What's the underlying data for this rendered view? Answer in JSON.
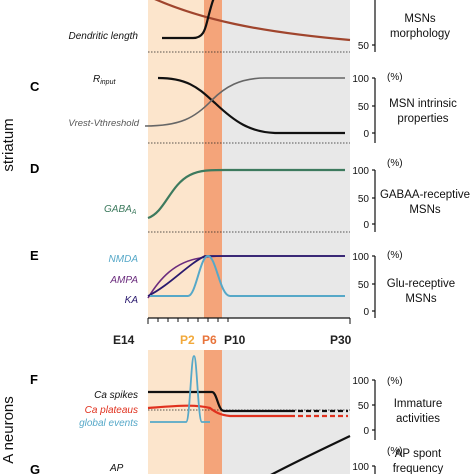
{
  "figure": {
    "side_labels": {
      "striatum": "striatum",
      "bottom": "A neurons"
    },
    "axis": {
      "ticks": [
        "E14",
        "P2",
        "P6",
        "P10",
        "P30"
      ],
      "tick_colors": {
        "P2": "#f2a93b",
        "P6": "#e8743b",
        "P10": "#222222",
        "E14": "#222222",
        "P30": "#222222"
      }
    },
    "colors": {
      "peach": "#fce5cc",
      "orange_band": "#f4a47a",
      "gray": "#e8e8e8",
      "black": "#111111",
      "brown": "#a0452d",
      "dark_gray": "#666666",
      "green": "#3d7a5e",
      "cyan": "#56a8c8",
      "purple": "#6b2c7e",
      "navy": "#2a1a6e",
      "red": "#e0311e"
    },
    "panels": {
      "top": {
        "dendritic_label": "Dendritic length",
        "right_label_1": "MSNs",
        "right_label_2": "morphology",
        "y_label": "50"
      },
      "C": {
        "letter": "C",
        "rinput": "R",
        "rinput_sub": "input",
        "vrest": "Vrest-Vthreshold",
        "y_labels": [
          "100",
          "50",
          "0"
        ],
        "unit": "(%)",
        "right_label_1": "MSN intrinsic",
        "right_label_2": "properties"
      },
      "D": {
        "letter": "D",
        "gaba": "GABA",
        "gaba_sub": "A",
        "y_labels": [
          "100",
          "50",
          "0"
        ],
        "unit": "(%)",
        "right_label_1": "GABAA-receptive",
        "right_label_2": "MSNs"
      },
      "E": {
        "letter": "E",
        "nmda": "NMDA",
        "ampa": "AMPA",
        "ka": "KA",
        "y_labels": [
          "100",
          "50",
          "0"
        ],
        "unit": "(%)",
        "right_label_1": "Glu-receptive",
        "right_label_2": "MSNs"
      },
      "F": {
        "letter": "F",
        "ca_spikes": "Ca spikes",
        "ca_plateaus": "Ca plateaus",
        "global_events": "global events",
        "y_labels": [
          "100",
          "50",
          "0"
        ],
        "unit": "(%)",
        "right_label_1": "Immature",
        "right_label_2": "activities"
      },
      "G": {
        "letter": "G",
        "ap_label": "AP",
        "y_label": "100",
        "unit": "(%)",
        "right_label_1": "AP spont",
        "right_label_2": "frequency"
      }
    }
  },
  "chart_data": [
    {
      "type": "line",
      "title": "MSNs morphology",
      "x_ticks": [
        "E14",
        "P2",
        "P6",
        "P10",
        "P30"
      ],
      "series": [
        {
          "name": "Dendritic length"
        }
      ]
    },
    {
      "type": "line",
      "title": "MSN intrinsic properties",
      "ylim": [
        0,
        100
      ],
      "y_ticks": [
        0,
        50,
        100
      ],
      "ylabel": "(%)",
      "series": [
        {
          "name": "Rinput"
        },
        {
          "name": "Vrest-Vthreshold"
        }
      ]
    },
    {
      "type": "line",
      "title": "GABAA-receptive MSNs",
      "ylim": [
        0,
        100
      ],
      "y_ticks": [
        0,
        50,
        100
      ],
      "ylabel": "(%)",
      "series": [
        {
          "name": "GABAA"
        }
      ]
    },
    {
      "type": "line",
      "title": "Glu-receptive MSNs",
      "ylim": [
        0,
        100
      ],
      "y_ticks": [
        0,
        50,
        100
      ],
      "ylabel": "(%)",
      "series": [
        {
          "name": "NMDA"
        },
        {
          "name": "AMPA"
        },
        {
          "name": "KA"
        }
      ]
    },
    {
      "type": "line",
      "title": "Immature activities",
      "ylim": [
        0,
        100
      ],
      "y_ticks": [
        0,
        50,
        100
      ],
      "ylabel": "(%)",
      "series": [
        {
          "name": "Ca spikes"
        },
        {
          "name": "Ca plateaus"
        },
        {
          "name": "global events"
        }
      ]
    },
    {
      "type": "line",
      "title": "AP spont frequency",
      "ylim": [
        0,
        100
      ],
      "ylabel": "(%)",
      "series": [
        {
          "name": "AP"
        }
      ]
    }
  ]
}
